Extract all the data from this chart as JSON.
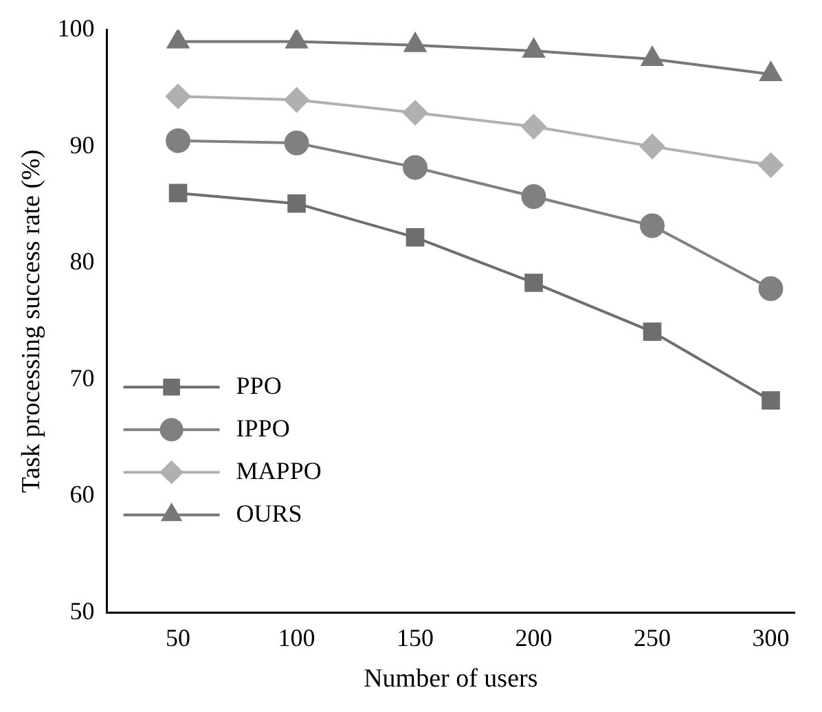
{
  "chart_data": {
    "type": "line",
    "xlabel": "Number of users",
    "ylabel": "Task processing success rate (%)",
    "x": [
      50,
      100,
      150,
      200,
      250,
      300
    ],
    "xlim": [
      20,
      310
    ],
    "xticks": [
      50,
      100,
      150,
      200,
      250,
      300
    ],
    "ylim": [
      50,
      100
    ],
    "yticks": [
      50,
      60,
      70,
      80,
      90,
      100
    ],
    "grid": false,
    "legend": "bottom left",
    "line_style": "solid",
    "series": [
      {
        "name": "PPO",
        "color": "#6e6e6e",
        "marker": "square",
        "values": [
          86.0,
          85.1,
          82.2,
          78.3,
          74.1,
          68.2
        ]
      },
      {
        "name": "IPPO",
        "color": "#808080",
        "marker": "circle",
        "values": [
          90.5,
          90.3,
          88.2,
          85.7,
          83.2,
          77.8
        ]
      },
      {
        "name": "MAPPO",
        "color": "#b0b0b0",
        "marker": "diamond",
        "values": [
          94.3,
          94.0,
          92.9,
          91.7,
          90.0,
          88.4
        ]
      },
      {
        "name": "OURS",
        "color": "#777777",
        "marker": "triangle",
        "values": [
          99.0,
          99.0,
          98.7,
          98.2,
          97.5,
          96.2
        ]
      }
    ]
  }
}
